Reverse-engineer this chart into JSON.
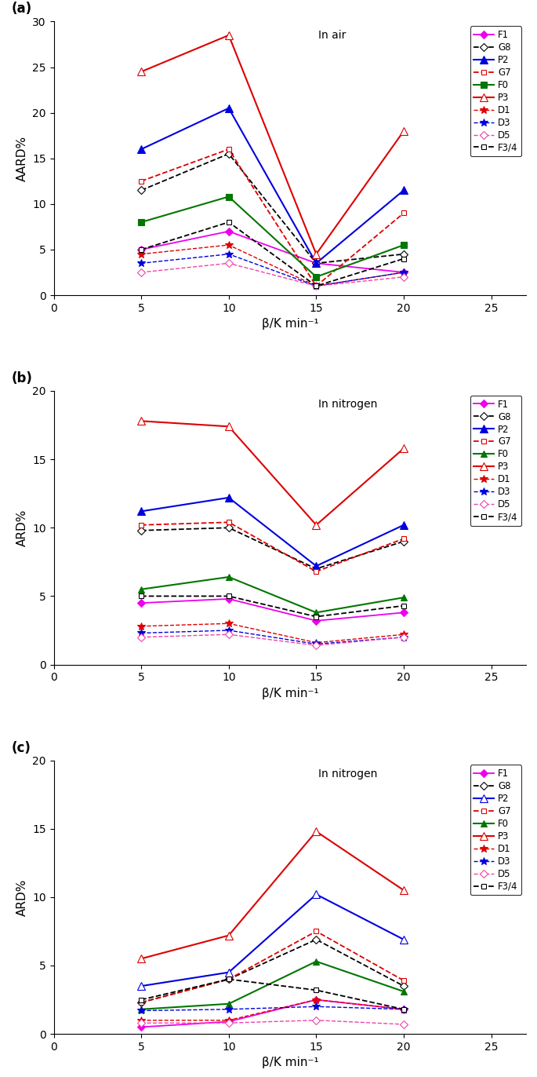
{
  "x": [
    5,
    10,
    15,
    20
  ],
  "panel_a": {
    "title": "In air",
    "ylabel": "AARD%",
    "ylim": [
      0,
      30
    ],
    "yticks": [
      0,
      5,
      10,
      15,
      20,
      25,
      30
    ],
    "series": {
      "F1": [
        5.0,
        7.0,
        3.5,
        2.5
      ],
      "G8": [
        11.5,
        15.5,
        3.5,
        4.5
      ],
      "P2": [
        16.0,
        20.5,
        3.5,
        11.5
      ],
      "G7": [
        12.5,
        16.0,
        1.0,
        9.0
      ],
      "F0": [
        8.0,
        10.8,
        2.0,
        5.5
      ],
      "P3": [
        24.5,
        28.5,
        4.5,
        18.0
      ],
      "D1": [
        4.5,
        5.5,
        1.0,
        2.5
      ],
      "D3": [
        3.5,
        4.5,
        1.0,
        2.5
      ],
      "D5": [
        2.5,
        3.5,
        1.0,
        2.0
      ],
      "F3/4": [
        5.0,
        8.0,
        1.0,
        4.0
      ]
    }
  },
  "panel_b": {
    "title": "In nitrogen",
    "ylabel": "ARD%",
    "ylim": [
      0,
      20
    ],
    "yticks": [
      0,
      5,
      10,
      15,
      20
    ],
    "series": {
      "F1": [
        4.5,
        4.8,
        3.2,
        3.8
      ],
      "G8": [
        9.8,
        10.0,
        7.0,
        9.0
      ],
      "P2": [
        11.2,
        12.2,
        7.2,
        10.2
      ],
      "G7": [
        10.2,
        10.4,
        6.8,
        9.2
      ],
      "F0": [
        5.5,
        6.4,
        3.8,
        4.9
      ],
      "P3": [
        17.8,
        17.4,
        10.2,
        15.8
      ],
      "D1": [
        2.8,
        3.0,
        1.6,
        2.2
      ],
      "D3": [
        2.3,
        2.5,
        1.5,
        2.0
      ],
      "D5": [
        2.0,
        2.2,
        1.4,
        2.0
      ],
      "F3/4": [
        5.0,
        5.0,
        3.5,
        4.3
      ]
    }
  },
  "panel_c": {
    "title": "In nitrogen",
    "ylabel": "ARD%",
    "ylim": [
      0,
      20
    ],
    "yticks": [
      0,
      5,
      10,
      15,
      20
    ],
    "series": {
      "F1": [
        0.5,
        0.9,
        2.5,
        1.8
      ],
      "G8": [
        2.3,
        4.0,
        6.9,
        3.5
      ],
      "P2": [
        3.5,
        4.5,
        10.2,
        6.9
      ],
      "G7": [
        2.3,
        4.0,
        7.5,
        3.9
      ],
      "F0": [
        1.8,
        2.2,
        5.3,
        3.1
      ],
      "P3": [
        5.5,
        7.2,
        14.8,
        10.5
      ],
      "D1": [
        1.0,
        1.0,
        2.5,
        1.8
      ],
      "D3": [
        1.7,
        1.8,
        2.0,
        1.8
      ],
      "D5": [
        0.8,
        0.8,
        1.0,
        0.7
      ],
      "F3/4": [
        2.5,
        4.0,
        3.2,
        1.8
      ]
    }
  },
  "xlim": [
    0,
    27
  ],
  "xticks": [
    0,
    5,
    10,
    15,
    20,
    25
  ],
  "xlabel": "β/K min⁻¹",
  "legend_order": [
    "F1",
    "G8",
    "P2",
    "G7",
    "F0",
    "P3",
    "D1",
    "D3",
    "D5",
    "F3/4"
  ]
}
